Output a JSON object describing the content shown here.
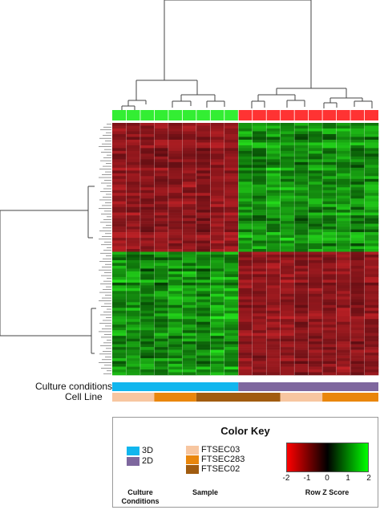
{
  "annotation_rows": {
    "culture_label": "Culture conditions",
    "cellline_label": "Cell Line"
  },
  "group_bar": {
    "colors": [
      "#33ee33",
      "#ff3333"
    ],
    "split_column": 9,
    "n_columns": 19
  },
  "culture_bar": [
    {
      "name": "3D",
      "color": "#11b6ee",
      "columns": 9
    },
    {
      "name": "2D",
      "color": "#7e679e",
      "columns": 10
    }
  ],
  "cellline_bar": [
    {
      "name": "FTSEC03",
      "color": "#f7c6a0",
      "columns": 3
    },
    {
      "name": "FTSEC283",
      "color": "#e9860c",
      "columns": 3
    },
    {
      "name": "FTSEC02",
      "color": "#a15c10",
      "columns": 6
    },
    {
      "name": "FTSEC03",
      "color": "#f7c6a0",
      "columns": 3
    },
    {
      "name": "FTSEC283",
      "color": "#e9860c",
      "columns": 4
    }
  ],
  "heatmap": {
    "rows": 90,
    "columns": 19,
    "top_cluster_rows": 46,
    "col_split": 9
  },
  "legend": {
    "title": "Color Key",
    "culture": [
      {
        "label": "3D",
        "color": "#11b6ee"
      },
      {
        "label": "2D",
        "color": "#7e679e"
      }
    ],
    "samples": [
      {
        "label": "FTSEC03",
        "color": "#f7c6a0"
      },
      {
        "label": "FTSEC283",
        "color": "#e9860c"
      },
      {
        "label": "FTSEC02",
        "color": "#a15c10"
      }
    ],
    "culture_caption_1": "Culture",
    "culture_caption_2": "Conditions",
    "sample_caption": "Sample",
    "zscore_caption": "Row Z Score",
    "ticks": [
      "-2",
      "-1",
      "0",
      "1",
      "2"
    ]
  }
}
